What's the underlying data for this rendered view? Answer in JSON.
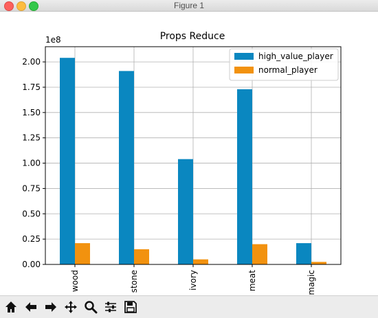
{
  "window": {
    "title": "Figure 1"
  },
  "toolbar": {
    "buttons": [
      {
        "name": "home",
        "icon": "home-icon"
      },
      {
        "name": "back",
        "icon": "arrow-left-icon"
      },
      {
        "name": "forward",
        "icon": "arrow-right-icon"
      },
      {
        "name": "pan",
        "icon": "move-icon"
      },
      {
        "name": "zoom",
        "icon": "magnifier-icon"
      },
      {
        "name": "subplots",
        "icon": "sliders-icon"
      },
      {
        "name": "save",
        "icon": "floppy-icon"
      }
    ]
  },
  "colors": {
    "high": "#0a87c0",
    "normal": "#f2920f",
    "grid": "#b0b0b0"
  },
  "chart_data": {
    "type": "bar",
    "title": "Props Reduce",
    "xlabel": "",
    "ylabel": "",
    "offset_label": "1e8",
    "categories": [
      "wood",
      "stone",
      "ivory",
      "meat",
      "magic"
    ],
    "series": [
      {
        "name": "high_value_player",
        "values": [
          2.04,
          1.91,
          1.04,
          1.73,
          0.21
        ]
      },
      {
        "name": "normal_player",
        "values": [
          0.21,
          0.15,
          0.05,
          0.2,
          0.025
        ]
      }
    ],
    "ylim": [
      0,
      2.15
    ],
    "yticks": [
      "0.00",
      "0.25",
      "0.50",
      "0.75",
      "1.00",
      "1.25",
      "1.50",
      "1.75",
      "2.00"
    ],
    "ytick_values": [
      0,
      0.25,
      0.5,
      0.75,
      1.0,
      1.25,
      1.5,
      1.75,
      2.0
    ],
    "grid": true,
    "legend_position": "top-right"
  }
}
